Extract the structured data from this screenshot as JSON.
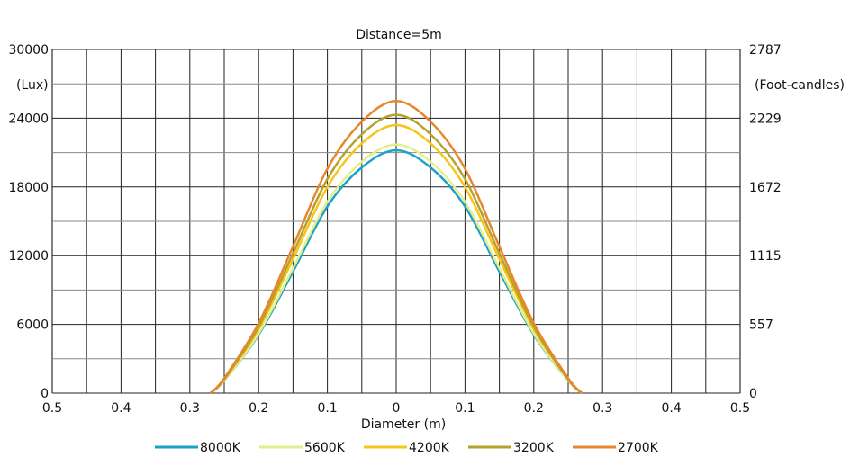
{
  "chart_data": {
    "type": "line",
    "title": "Distance=5m",
    "xlabel": "Diameter (m)",
    "ylabel_left": "(Lux)",
    "ylabel_right": "(Foot-candles)",
    "xlim": [
      -0.5,
      0.5
    ],
    "ylim": [
      0,
      30000
    ],
    "x_tick_labels": [
      "0.5",
      "0.4",
      "0.3",
      "0.2",
      "0.1",
      "0",
      "0.1",
      "0.2",
      "0.3",
      "0.4",
      "0.5"
    ],
    "y_tick_labels_left": [
      "0",
      "6000",
      "12000",
      "18000",
      "24000",
      "30000"
    ],
    "y_tick_labels_right": [
      "0",
      "557",
      "1115",
      "1672",
      "2229",
      "2787"
    ],
    "grid": true,
    "legend_position": "bottom",
    "x": [
      -0.27,
      -0.25,
      -0.2,
      -0.15,
      -0.1,
      -0.05,
      0,
      0.05,
      0.1,
      0.15,
      0.2,
      0.25,
      0.27
    ],
    "series": [
      {
        "name": "8000K",
        "color": "#1ba3c6",
        "values": [
          0,
          1100,
          5100,
          10600,
          16300,
          19700,
          21200,
          19700,
          16300,
          10600,
          5100,
          1100,
          0
        ]
      },
      {
        "name": "5600K",
        "color": "#e6ee8c",
        "values": [
          0,
          1100,
          5200,
          10900,
          16700,
          20200,
          21700,
          20200,
          16700,
          10900,
          5200,
          1100,
          0
        ]
      },
      {
        "name": "4200K",
        "color": "#f5c51a",
        "values": [
          0,
          1200,
          5600,
          11700,
          18000,
          21800,
          23400,
          21800,
          18000,
          11700,
          5600,
          1200,
          0
        ]
      },
      {
        "name": "3200K",
        "color": "#b5a22a",
        "values": [
          0,
          1200,
          5800,
          12200,
          18700,
          22600,
          24300,
          22600,
          18700,
          12200,
          5800,
          1200,
          0
        ]
      },
      {
        "name": "2700K",
        "color": "#e8862e",
        "values": [
          0,
          1300,
          6100,
          12800,
          19600,
          23700,
          25500,
          23700,
          19600,
          12800,
          6100,
          1300,
          0
        ]
      }
    ]
  }
}
